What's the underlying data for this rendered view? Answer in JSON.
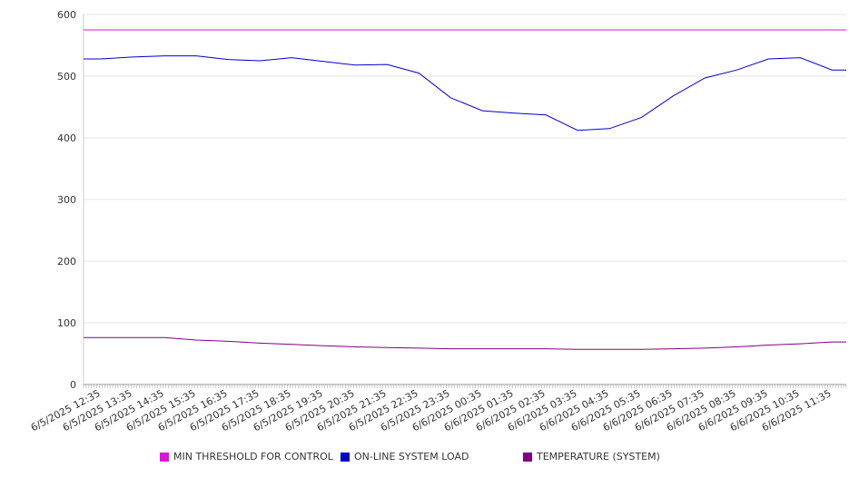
{
  "chart_data": {
    "type": "line",
    "title": "",
    "xlabel": "",
    "ylabel": "",
    "ylim": [
      0,
      600
    ],
    "yticks": [
      0,
      100,
      200,
      300,
      400,
      500,
      600
    ],
    "grid": true,
    "legend": "bottom",
    "categories": [
      "6/5/2025 12:35",
      "6/5/2025 13:35",
      "6/5/2025 14:35",
      "6/5/2025 15:35",
      "6/5/2025 16:35",
      "6/5/2025 17:35",
      "6/5/2025 18:35",
      "6/5/2025 19:35",
      "6/5/2025 20:35",
      "6/5/2025 21:35",
      "6/5/2025 22:35",
      "6/5/2025 23:35",
      "6/6/2025 00:35",
      "6/6/2025 01:35",
      "6/6/2025 02:35",
      "6/6/2025 03:35",
      "6/6/2025 04:35",
      "6/6/2025 05:35",
      "6/6/2025 06:35",
      "6/6/2025 07:35",
      "6/6/2025 08:35",
      "6/6/2025 09:35",
      "6/6/2025 10:35",
      "6/6/2025 11:35"
    ],
    "series": [
      {
        "name": "MIN THRESHOLD FOR CONTROL",
        "color": "#e010e0",
        "values": [
          575,
          575,
          575,
          575,
          575,
          575,
          575,
          575,
          575,
          575,
          575,
          575,
          575,
          575,
          575,
          575,
          575,
          575,
          575,
          575,
          575,
          575,
          575,
          575
        ]
      },
      {
        "name": "ON-LINE SYSTEM LOAD",
        "color": "#0000cc",
        "values": [
          528,
          531,
          533,
          533,
          527,
          525,
          530,
          524,
          518,
          519,
          505,
          465,
          444,
          440,
          437,
          412,
          415,
          433,
          468,
          497,
          510,
          528,
          530,
          510
        ]
      },
      {
        "name": "TEMPERATURE (SYSTEM)",
        "color": "#800080",
        "values": [
          76,
          76,
          76,
          72,
          70,
          67,
          65,
          63,
          61,
          60,
          59,
          58,
          58,
          58,
          58,
          57,
          57,
          57,
          58,
          59,
          61,
          64,
          66,
          69
        ]
      }
    ]
  }
}
